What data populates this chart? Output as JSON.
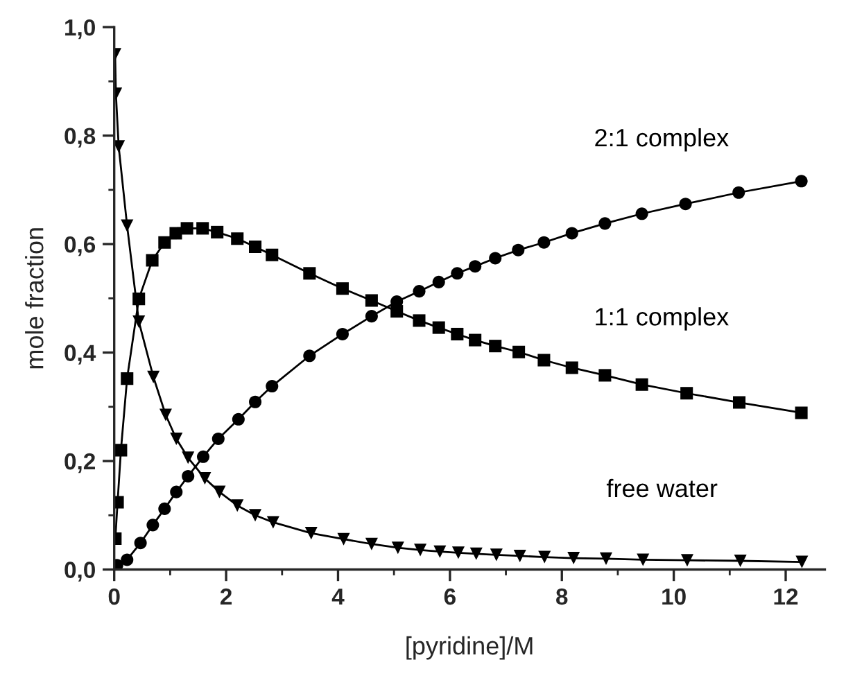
{
  "chart_data": {
    "type": "line",
    "xlabel": "[pyridine]/M",
    "ylabel": "mole fraction",
    "xlim": [
      0,
      12.7
    ],
    "ylim": [
      0,
      1.0
    ],
    "xticks": [
      0,
      {
        "value": 1,
        "label": null
      },
      2,
      {
        "value": 3,
        "label": null
      },
      4,
      {
        "value": 5,
        "label": null
      },
      6,
      {
        "value": 7,
        "label": null
      },
      8,
      {
        "value": 9,
        "label": null
      },
      10,
      {
        "value": 11,
        "label": null
      },
      12
    ],
    "yticks": [
      {
        "value": 0,
        "label": "0,0"
      },
      {
        "value": 0.1,
        "label": null
      },
      {
        "value": 0.2,
        "label": "0,2"
      },
      {
        "value": 0.3,
        "label": null
      },
      {
        "value": 0.4,
        "label": "0,4"
      },
      {
        "value": 0.5,
        "label": null
      },
      {
        "value": 0.6,
        "label": "0,6"
      },
      {
        "value": 0.7,
        "label": null
      },
      {
        "value": 0.8,
        "label": "0,8"
      },
      {
        "value": 0.9,
        "label": null
      },
      {
        "value": 1.0,
        "label": "1,0"
      }
    ],
    "grid": false,
    "legend": false,
    "series": [
      {
        "name": "free water",
        "color": "#000000",
        "marker": "triangle",
        "x": [
          0.016,
          0.03,
          0.08,
          0.23,
          0.44,
          0.7,
          0.92,
          1.11,
          1.32,
          1.62,
          1.88,
          2.2,
          2.52,
          2.84,
          3.52,
          4.1,
          4.6,
          5.07,
          5.47,
          5.82,
          6.15,
          6.47,
          6.83,
          7.25,
          7.69,
          8.21,
          8.79,
          9.45,
          10.24,
          11.19,
          12.29
        ],
        "values": [
          0.95,
          0.877,
          0.78,
          0.634,
          0.457,
          0.355,
          0.285,
          0.241,
          0.206,
          0.168,
          0.143,
          0.118,
          0.1,
          0.087,
          0.067,
          0.056,
          0.047,
          0.04,
          0.036,
          0.033,
          0.031,
          0.029,
          0.027,
          0.025,
          0.023,
          0.021,
          0.02,
          0.018,
          0.017,
          0.016,
          0.014
        ]
      },
      {
        "name": "1:1 complex",
        "color": "#000000",
        "marker": "square",
        "x": [
          0.02,
          0.06,
          0.12,
          0.23,
          0.44,
          0.68,
          0.9,
          1.1,
          1.3,
          1.58,
          1.84,
          2.2,
          2.52,
          2.82,
          3.49,
          4.08,
          4.6,
          5.05,
          5.45,
          5.8,
          6.13,
          6.45,
          6.81,
          7.23,
          7.68,
          8.18,
          8.77,
          9.43,
          10.23,
          11.17,
          12.28
        ],
        "values": [
          0.057,
          0.124,
          0.22,
          0.352,
          0.499,
          0.57,
          0.603,
          0.62,
          0.629,
          0.629,
          0.622,
          0.61,
          0.595,
          0.58,
          0.546,
          0.518,
          0.496,
          0.476,
          0.459,
          0.446,
          0.434,
          0.423,
          0.412,
          0.401,
          0.386,
          0.372,
          0.358,
          0.341,
          0.325,
          0.308,
          0.289
        ]
      },
      {
        "name": "2:1 complex",
        "color": "#000000",
        "marker": "circle",
        "x": [
          0.05,
          0.23,
          0.47,
          0.69,
          0.9,
          1.11,
          1.32,
          1.59,
          1.86,
          2.22,
          2.52,
          2.82,
          3.49,
          4.08,
          4.6,
          5.05,
          5.45,
          5.8,
          6.13,
          6.45,
          6.81,
          7.22,
          7.68,
          8.18,
          8.77,
          9.43,
          10.21,
          11.16,
          12.28
        ],
        "values": [
          0.008,
          0.018,
          0.049,
          0.082,
          0.112,
          0.143,
          0.172,
          0.208,
          0.241,
          0.277,
          0.309,
          0.338,
          0.394,
          0.434,
          0.467,
          0.494,
          0.513,
          0.53,
          0.546,
          0.559,
          0.574,
          0.589,
          0.603,
          0.62,
          0.638,
          0.656,
          0.674,
          0.695,
          0.716
        ]
      }
    ]
  }
}
